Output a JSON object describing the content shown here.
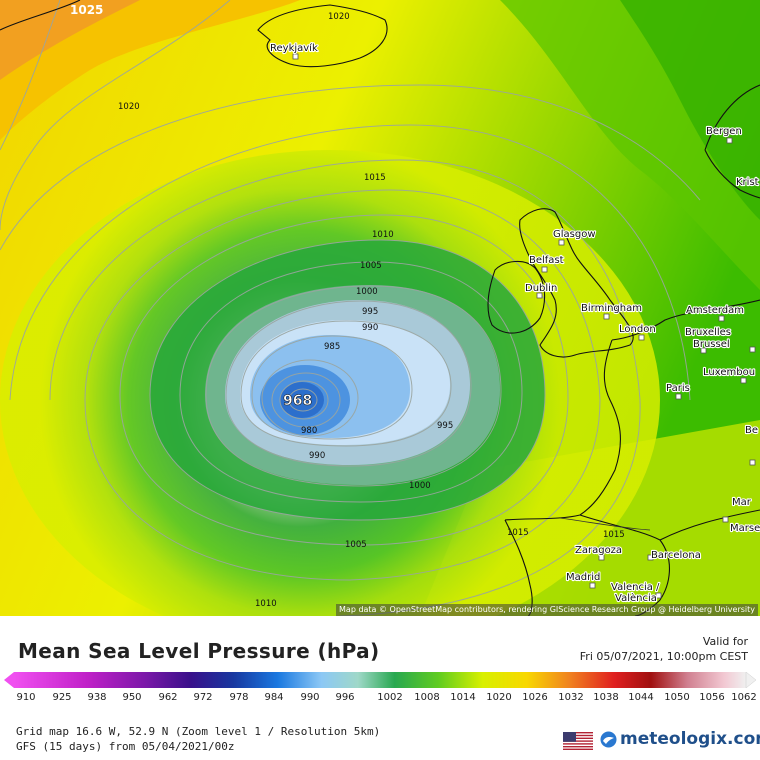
{
  "map": {
    "cities": [
      {
        "name": "Reykjavík"
      },
      {
        "name": "Bergen"
      },
      {
        "name": "Krist"
      },
      {
        "name": "Glasgow"
      },
      {
        "name": "Belfast"
      },
      {
        "name": "Dublin"
      },
      {
        "name": "Birmingham"
      },
      {
        "name": "London"
      },
      {
        "name": "Amsterdam"
      },
      {
        "name": "Bruxelles"
      },
      {
        "name": "Brussel"
      },
      {
        "name": "Luxembou"
      },
      {
        "name": "Paris"
      },
      {
        "name": "Zaragoza"
      },
      {
        "name": "Barcelona"
      },
      {
        "name": "Madrid"
      },
      {
        "name": "Valencia /"
      },
      {
        "name": "València"
      },
      {
        "name": "Mar"
      },
      {
        "name": "Marse"
      },
      {
        "name": "Be"
      }
    ],
    "isobar_labels": [
      "1025",
      "1020",
      "1020",
      "1015",
      "1010",
      "1005",
      "1000",
      "995",
      "990",
      "985",
      "968",
      "980",
      "990",
      "995",
      "1000",
      "1005",
      "1010",
      "1015",
      "1015"
    ],
    "low_center_value": "968",
    "attribution": "Map data © OpenStreetMap contributors, rendering GIScience Research Group @ Heidelberg University"
  },
  "header": {
    "title": "Mean Sea Level Pressure (hPa)",
    "valid_label": "Valid for",
    "valid_time": "Fri 05/07/2021, 10:00pm CEST"
  },
  "legend": {
    "labels": [
      "910",
      "925",
      "938",
      "950",
      "962",
      "972",
      "978",
      "984",
      "990",
      "996",
      "1002",
      "1008",
      "1014",
      "1020",
      "1026",
      "1032",
      "1038",
      "1044",
      "1050",
      "1056",
      "1062"
    ]
  },
  "footer": {
    "grid_info": "Grid map 16.6 W, 52.9 N (Zoom level 1 / Resolution 5km)",
    "model_info": "GFS (15 days) from 05/04/2021/00z",
    "brand": "meteologix.com"
  },
  "colors": {
    "orange": "#f5a623",
    "yellow": "#f0f000",
    "yellow_green": "#c8e600",
    "green": "#50c800",
    "dark_green": "#1e9e1e",
    "sea_green": "#7fbf9a",
    "pale_blue": "#bcdcf5",
    "blue": "#3a7fd6"
  }
}
